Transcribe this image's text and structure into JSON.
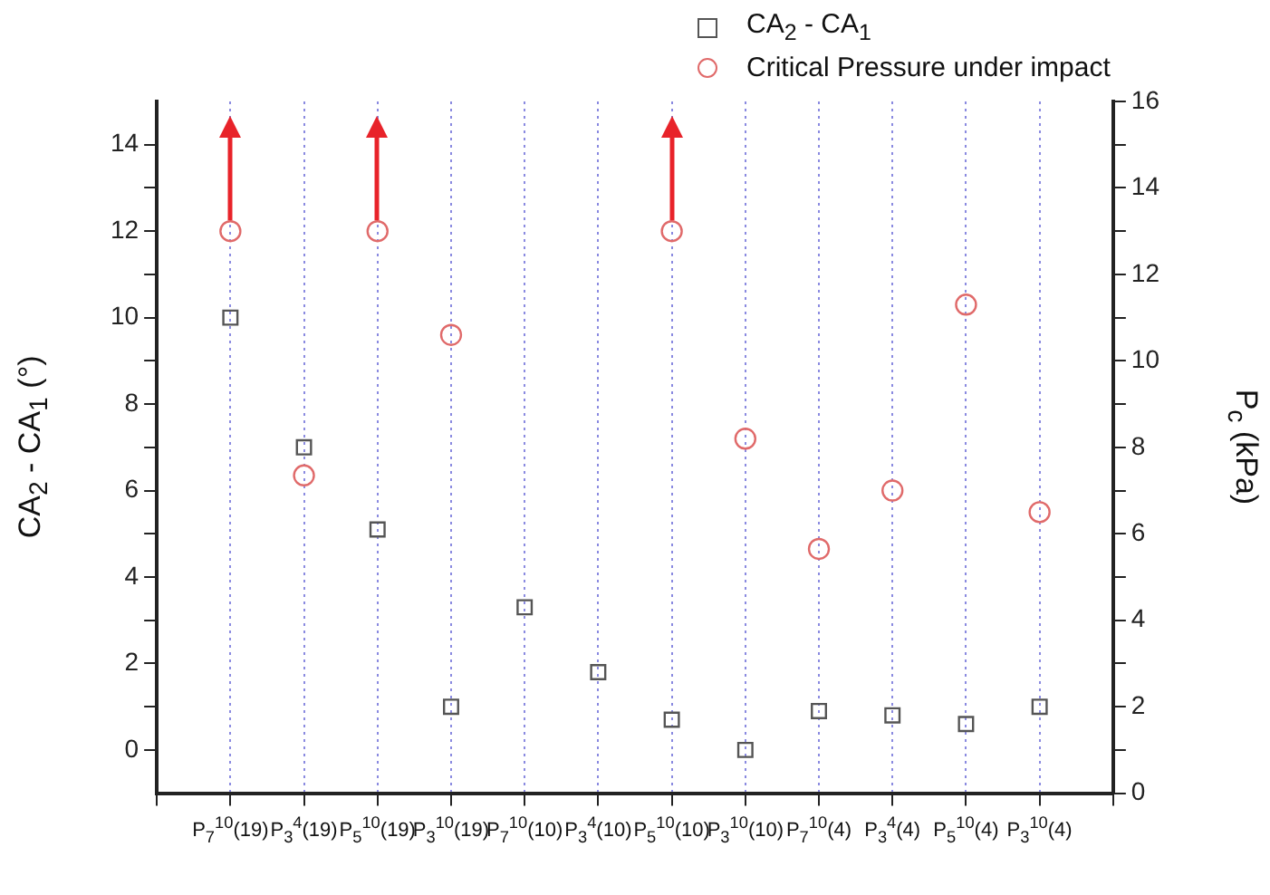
{
  "chart_data": {
    "type": "scatter",
    "categories": [
      "P$_{7}$$^{10}$(19)",
      "P$_{3}$$^{4}$(19)",
      "P$_{5}$$^{10}$(19)",
      "P$_{3}$$^{10}$(19)",
      "P$_{7}$$^{10}$(10)",
      "P$_{3}$$^{4}$(10)",
      "P$_{5}$$^{10}$(10)",
      "P$_{3}$$^{10}$(10)",
      "P$_{7}$$^{10}$(4)",
      "P$_{3}$$^{4}$(4)",
      "P$_{5}$$^{10}$(4)",
      "P$_{3}$$^{10}$(4)"
    ],
    "series": [
      {
        "name": "CA$_{2}$ - CA$_{1}$",
        "color": "#555555",
        "marker": "square",
        "values": [
          10,
          7,
          5.1,
          1,
          3.3,
          1.8,
          0.7,
          0,
          0.9,
          0.8,
          0.6,
          1
        ]
      },
      {
        "name": "Critical Pressure under impact",
        "color": "#e06a6a",
        "marker": "circle",
        "axis": "y2",
        "values": [
          13,
          7.35,
          13,
          10.6,
          null,
          null,
          13,
          8.2,
          5.65,
          7.0,
          11.3,
          6.5
        ]
      }
    ],
    "ylabel": "CA$_{2}$ - CA$_{1}$ (°)",
    "y2label": "P$_{c}$ (kPa)",
    "ylim": [
      -1,
      15
    ],
    "yticks": [
      0,
      {
        "value": 1,
        "label": null
      },
      2,
      {
        "value": 3,
        "label": null
      },
      4,
      {
        "value": 5,
        "label": null
      },
      6,
      {
        "value": 7,
        "label": null
      },
      8,
      {
        "value": 9,
        "label": null
      },
      10,
      {
        "value": 11,
        "label": null
      },
      12,
      {
        "value": 13,
        "label": null
      },
      14
    ],
    "y2lim": [
      0,
      16
    ],
    "y2ticks": [
      0,
      {
        "value": 1,
        "label": null
      },
      2,
      {
        "value": 3,
        "label": null
      },
      4,
      {
        "value": 5,
        "label": null
      },
      6,
      {
        "value": 7,
        "label": null
      },
      8,
      {
        "value": 9,
        "label": null
      },
      10,
      {
        "value": 11,
        "label": null
      },
      12,
      {
        "value": 13,
        "label": null
      },
      14,
      {
        "value": 15,
        "label": null
      },
      16
    ],
    "grid": "x",
    "legend": "top right"
  }
}
